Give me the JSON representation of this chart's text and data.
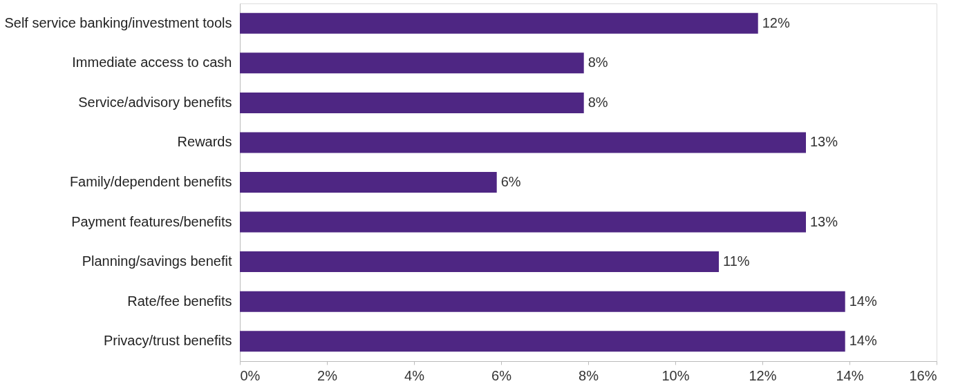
{
  "chart_data": {
    "type": "bar",
    "orientation": "horizontal",
    "categories": [
      "Self service banking/investment tools",
      "Immediate access to cash",
      "Service/advisory benefits",
      "Rewards",
      "Family/dependent benefits",
      "Payment features/benefits",
      "Planning/savings benefit",
      "Rate/fee benefits",
      "Privacy/trust benefits"
    ],
    "values": [
      11.9,
      7.9,
      7.9,
      13.0,
      5.9,
      13.0,
      11.0,
      13.9,
      13.9
    ],
    "value_labels": [
      "12%",
      "8%",
      "8%",
      "13%",
      "6%",
      "13%",
      "11%",
      "14%",
      "14%"
    ],
    "color": "#4e2683",
    "xlim": [
      0,
      16
    ],
    "xticks": [
      {
        "value": 0,
        "label": "0%"
      },
      {
        "value": 2,
        "label": "2%"
      },
      {
        "value": 4,
        "label": "4%"
      },
      {
        "value": 6,
        "label": "6%"
      },
      {
        "value": 8,
        "label": "8%"
      },
      {
        "value": 10,
        "label": "10%"
      },
      {
        "value": 12,
        "label": "12%"
      },
      {
        "value": 14,
        "label": "14%"
      },
      {
        "value": 16,
        "label": "16%"
      }
    ],
    "grid": false
  }
}
